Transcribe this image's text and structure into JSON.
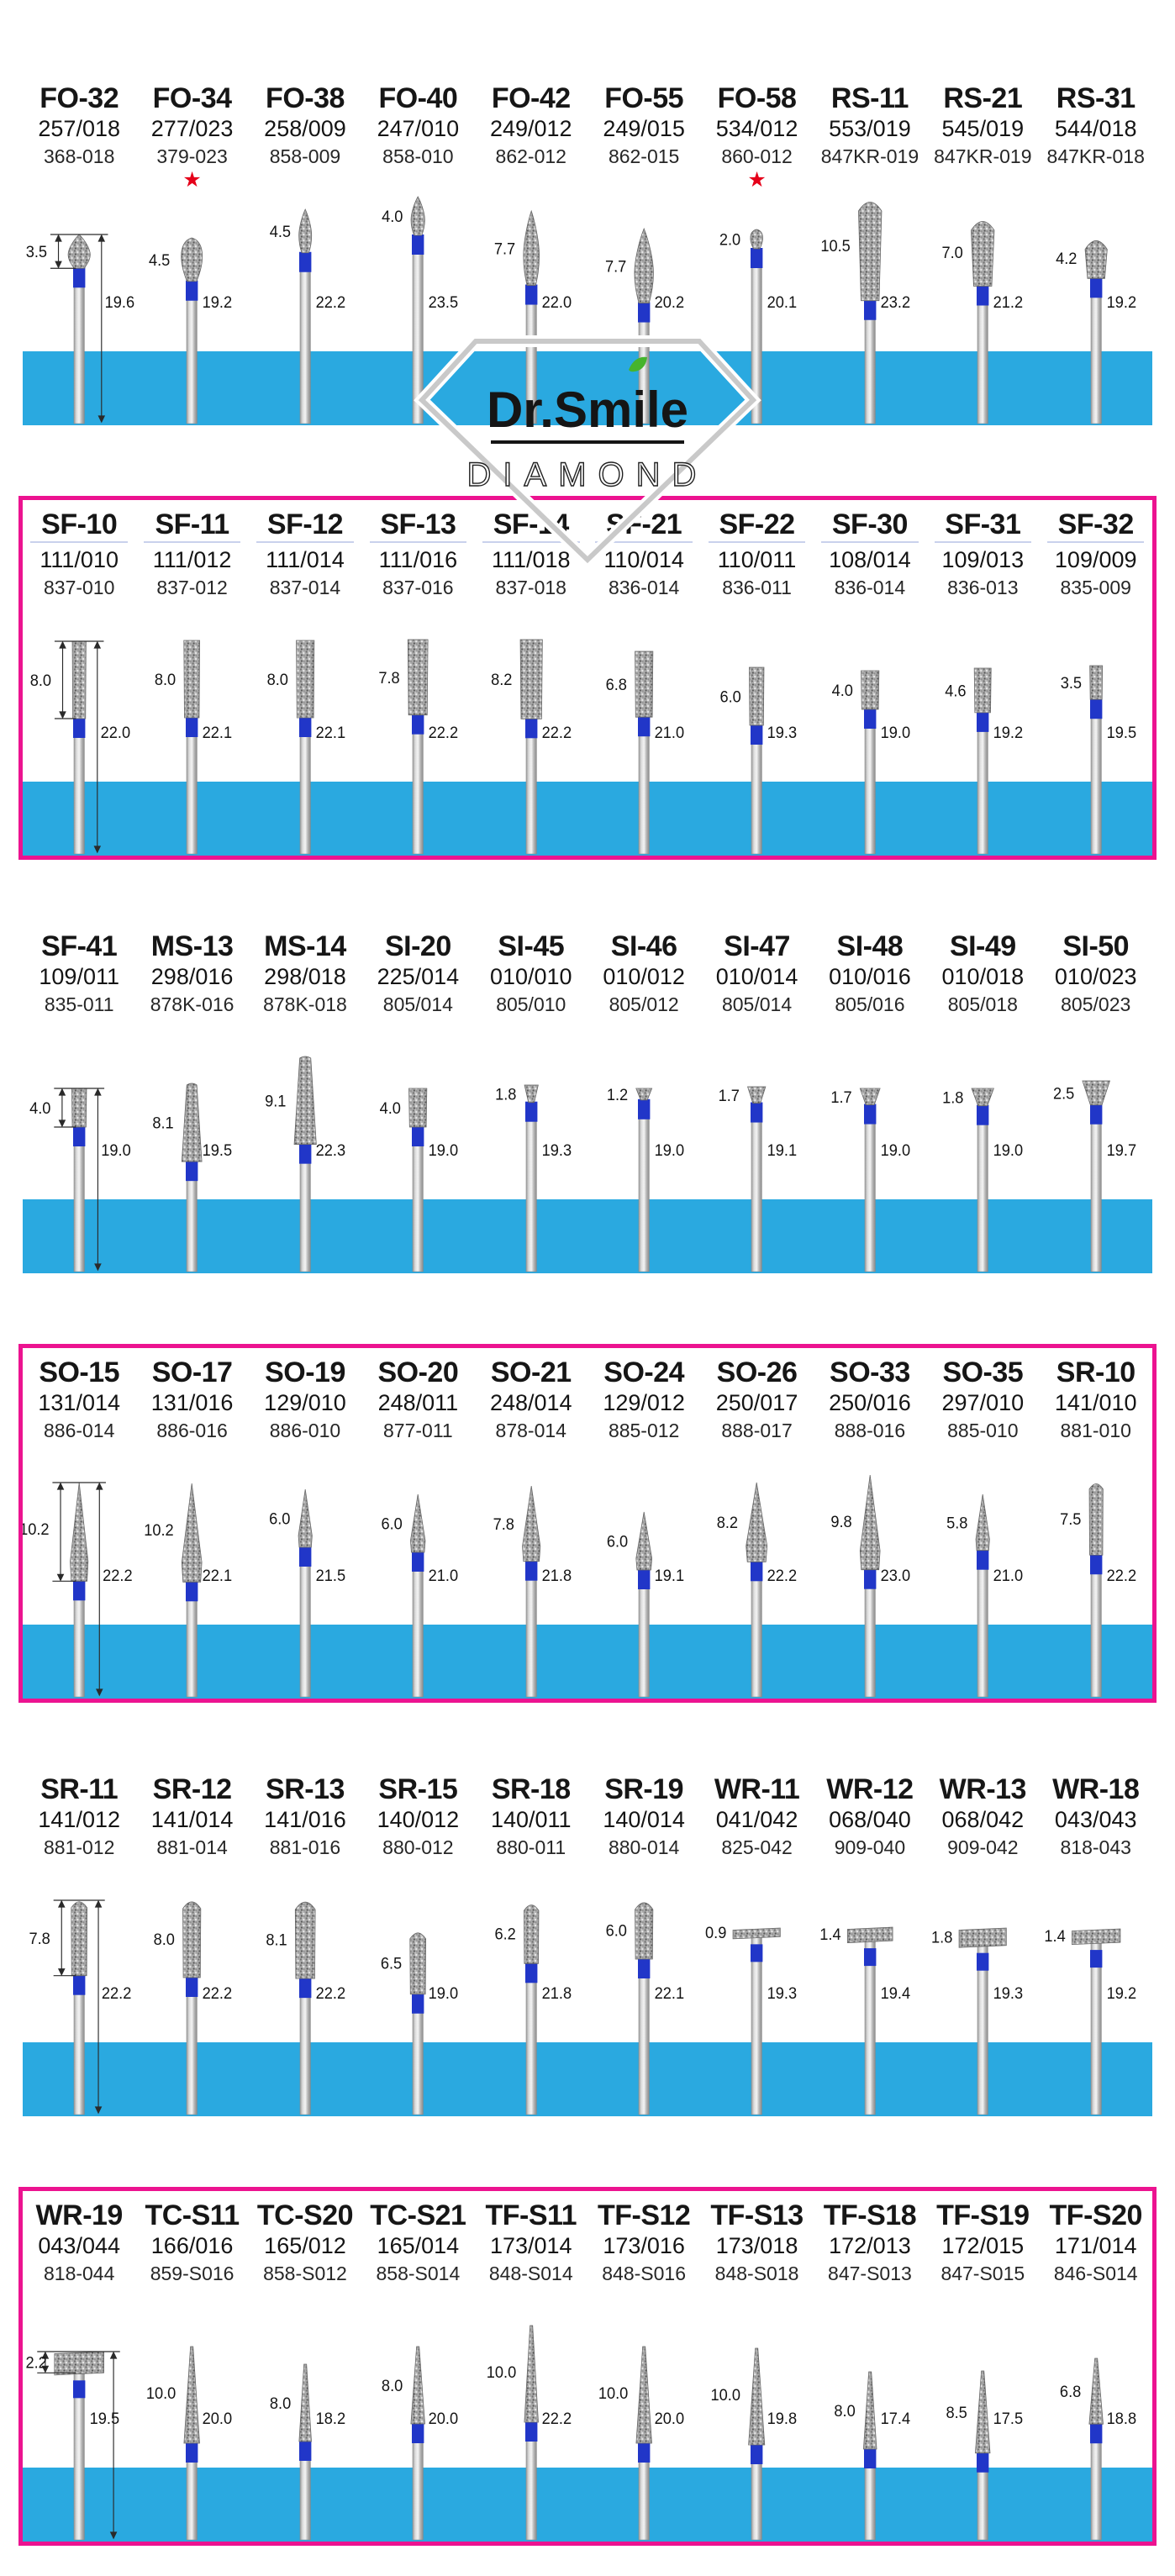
{
  "brand": {
    "name": "Dr.Smile",
    "subtitle": "DIAMOND"
  },
  "colors": {
    "band": "#2aa9e0",
    "box": "#ec1390",
    "neck": "#2136c8",
    "star": "#e50019",
    "diamond_outline": "#c9c9c9",
    "leaf": "#46b42d"
  },
  "rows": [
    {
      "boxed": false,
      "products": [
        {
          "code": "FO-32",
          "iso": "257/018",
          "ref": "368-018",
          "head": "3.5",
          "length": "19.6",
          "shape": "flame"
        },
        {
          "code": "FO-34",
          "iso": "277/023",
          "ref": "379-023",
          "head": "4.5",
          "length": "19.2",
          "shape": "egg",
          "star": true
        },
        {
          "code": "FO-38",
          "iso": "258/009",
          "ref": "858-009",
          "head": "4.5",
          "length": "22.2",
          "shape": "flame"
        },
        {
          "code": "FO-40",
          "iso": "247/010",
          "ref": "858-010",
          "head": "4.0",
          "length": "23.5",
          "shape": "flame"
        },
        {
          "code": "FO-42",
          "iso": "249/012",
          "ref": "862-012",
          "head": "7.7",
          "length": "22.0",
          "shape": "flame"
        },
        {
          "code": "FO-55",
          "iso": "249/015",
          "ref": "862-015",
          "head": "7.7",
          "length": "20.2",
          "shape": "flame"
        },
        {
          "code": "FO-58",
          "iso": "534/012",
          "ref": "860-012",
          "head": "2.0",
          "length": "20.1",
          "shape": "egg",
          "star": true
        },
        {
          "code": "RS-11",
          "iso": "553/019",
          "ref": "847KR-019",
          "head": "10.5",
          "length": "23.2",
          "shape": "round"
        },
        {
          "code": "RS-21",
          "iso": "545/019",
          "ref": "847KR-019",
          "head": "7.0",
          "length": "21.2",
          "shape": "round"
        },
        {
          "code": "RS-31",
          "iso": "544/018",
          "ref": "847KR-018",
          "head": "4.2",
          "length": "19.2",
          "shape": "round"
        }
      ]
    },
    {
      "boxed": true,
      "products": [
        {
          "code": "SF-10",
          "iso": "111/010",
          "ref": "837-010",
          "head": "8.0",
          "length": "22.0",
          "shape": "cyl"
        },
        {
          "code": "SF-11",
          "iso": "111/012",
          "ref": "837-012",
          "head": "8.0",
          "length": "22.1",
          "shape": "cyl"
        },
        {
          "code": "SF-12",
          "iso": "111/014",
          "ref": "837-014",
          "head": "8.0",
          "length": "22.1",
          "shape": "cyl"
        },
        {
          "code": "SF-13",
          "iso": "111/016",
          "ref": "837-016",
          "head": "7.8",
          "length": "22.2",
          "shape": "cyl"
        },
        {
          "code": "SF-14",
          "iso": "111/018",
          "ref": "837-018",
          "head": "8.2",
          "length": "22.2",
          "shape": "cyl"
        },
        {
          "code": "SF-21",
          "iso": "110/014",
          "ref": "836-014",
          "head": "6.8",
          "length": "21.0",
          "shape": "cyl"
        },
        {
          "code": "SF-22",
          "iso": "110/011",
          "ref": "836-011",
          "head": "6.0",
          "length": "19.3",
          "shape": "cyl"
        },
        {
          "code": "SF-30",
          "iso": "108/014",
          "ref": "836-014",
          "head": "4.0",
          "length": "19.0",
          "shape": "cyl"
        },
        {
          "code": "SF-31",
          "iso": "109/013",
          "ref": "836-013",
          "head": "4.6",
          "length": "19.2",
          "shape": "cyl"
        },
        {
          "code": "SF-32",
          "iso": "109/009",
          "ref": "835-009",
          "head": "3.5",
          "length": "19.5",
          "shape": "cyl"
        }
      ]
    },
    {
      "boxed": false,
      "products": [
        {
          "code": "SF-41",
          "iso": "109/011",
          "ref": "835-011",
          "head": "4.0",
          "length": "19.0",
          "shape": "cyl"
        },
        {
          "code": "MS-13",
          "iso": "298/016",
          "ref": "878K-016",
          "head": "8.1",
          "length": "19.5",
          "shape": "taper"
        },
        {
          "code": "MS-14",
          "iso": "298/018",
          "ref": "878K-018",
          "head": "9.1",
          "length": "22.3",
          "shape": "taper"
        },
        {
          "code": "SI-20",
          "iso": "225/014",
          "ref": "805/014",
          "head": "4.0",
          "length": "19.0",
          "shape": "cyl"
        },
        {
          "code": "SI-45",
          "iso": "010/010",
          "ref": "805/010",
          "head": "1.8",
          "length": "19.3",
          "shape": "invcone"
        },
        {
          "code": "SI-46",
          "iso": "010/012",
          "ref": "805/012",
          "head": "1.2",
          "length": "19.0",
          "shape": "invcone"
        },
        {
          "code": "SI-47",
          "iso": "010/014",
          "ref": "805/014",
          "head": "1.7",
          "length": "19.1",
          "shape": "invcone"
        },
        {
          "code": "SI-48",
          "iso": "010/016",
          "ref": "805/016",
          "head": "1.7",
          "length": "19.0",
          "shape": "invcone"
        },
        {
          "code": "SI-49",
          "iso": "010/018",
          "ref": "805/018",
          "head": "1.8",
          "length": "19.0",
          "shape": "invcone"
        },
        {
          "code": "SI-50",
          "iso": "010/023",
          "ref": "805/023",
          "head": "2.5",
          "length": "19.7",
          "shape": "invcone"
        }
      ]
    },
    {
      "boxed": true,
      "products": [
        {
          "code": "SO-15",
          "iso": "131/014",
          "ref": "886-014",
          "head": "10.2",
          "length": "22.2",
          "shape": "cone"
        },
        {
          "code": "SO-17",
          "iso": "131/016",
          "ref": "886-016",
          "head": "10.2",
          "length": "22.1",
          "shape": "cone"
        },
        {
          "code": "SO-19",
          "iso": "129/010",
          "ref": "886-010",
          "head": "6.0",
          "length": "21.5",
          "shape": "cone"
        },
        {
          "code": "SO-20",
          "iso": "248/011",
          "ref": "877-011",
          "head": "6.0",
          "length": "21.0",
          "shape": "cone"
        },
        {
          "code": "SO-21",
          "iso": "248/014",
          "ref": "878-014",
          "head": "7.8",
          "length": "21.8",
          "shape": "cone"
        },
        {
          "code": "SO-24",
          "iso": "129/012",
          "ref": "885-012",
          "head": "6.0",
          "length": "19.1",
          "shape": "cone"
        },
        {
          "code": "SO-26",
          "iso": "250/017",
          "ref": "888-017",
          "head": "8.2",
          "length": "22.2",
          "shape": "cone"
        },
        {
          "code": "SO-33",
          "iso": "250/016",
          "ref": "888-016",
          "head": "9.8",
          "length": "23.0",
          "shape": "cone"
        },
        {
          "code": "SO-35",
          "iso": "297/010",
          "ref": "885-010",
          "head": "5.8",
          "length": "21.0",
          "shape": "cone"
        },
        {
          "code": "SR-10",
          "iso": "141/010",
          "ref": "881-010",
          "head": "7.5",
          "length": "22.2",
          "shape": "roundcyl"
        }
      ]
    },
    {
      "boxed": false,
      "products": [
        {
          "code": "SR-11",
          "iso": "141/012",
          "ref": "881-012",
          "head": "7.8",
          "length": "22.2",
          "shape": "roundcyl"
        },
        {
          "code": "SR-12",
          "iso": "141/014",
          "ref": "881-014",
          "head": "8.0",
          "length": "22.2",
          "shape": "roundcyl"
        },
        {
          "code": "SR-13",
          "iso": "141/016",
          "ref": "881-016",
          "head": "8.1",
          "length": "22.2",
          "shape": "roundcyl"
        },
        {
          "code": "SR-15",
          "iso": "140/012",
          "ref": "880-012",
          "head": "6.5",
          "length": "19.0",
          "shape": "roundcyl"
        },
        {
          "code": "SR-18",
          "iso": "140/011",
          "ref": "880-011",
          "head": "6.2",
          "length": "21.8",
          "shape": "roundcyl"
        },
        {
          "code": "SR-19",
          "iso": "140/014",
          "ref": "880-014",
          "head": "6.0",
          "length": "22.1",
          "shape": "roundcyl"
        },
        {
          "code": "WR-11",
          "iso": "041/042",
          "ref": "825-042",
          "head": "0.9",
          "length": "19.3",
          "shape": "wheel"
        },
        {
          "code": "WR-12",
          "iso": "068/040",
          "ref": "909-040",
          "head": "1.4",
          "length": "19.4",
          "shape": "wheel"
        },
        {
          "code": "WR-13",
          "iso": "068/042",
          "ref": "909-042",
          "head": "1.8",
          "length": "19.3",
          "shape": "wheel"
        },
        {
          "code": "WR-18",
          "iso": "043/043",
          "ref": "818-043",
          "head": "1.4",
          "length": "19.2",
          "shape": "wheel"
        }
      ]
    },
    {
      "boxed": true,
      "products": [
        {
          "code": "WR-19",
          "iso": "043/044",
          "ref": "818-044",
          "head": "2.2",
          "length": "19.5",
          "shape": "wheel"
        },
        {
          "code": "TC-S11",
          "iso": "166/016",
          "ref": "859-S016",
          "head": "10.0",
          "length": "20.0",
          "shape": "needle"
        },
        {
          "code": "TC-S20",
          "iso": "165/012",
          "ref": "858-S012",
          "head": "8.0",
          "length": "18.2",
          "shape": "needle"
        },
        {
          "code": "TC-S21",
          "iso": "165/014",
          "ref": "858-S014",
          "head": "8.0",
          "length": "20.0",
          "shape": "needle"
        },
        {
          "code": "TF-S11",
          "iso": "173/014",
          "ref": "848-S014",
          "head": "10.0",
          "length": "22.2",
          "shape": "needle"
        },
        {
          "code": "TF-S12",
          "iso": "173/016",
          "ref": "848-S016",
          "head": "10.0",
          "length": "20.0",
          "shape": "needle"
        },
        {
          "code": "TF-S13",
          "iso": "173/018",
          "ref": "848-S018",
          "head": "10.0",
          "length": "19.8",
          "shape": "needle"
        },
        {
          "code": "TF-S18",
          "iso": "172/013",
          "ref": "847-S013",
          "head": "8.0",
          "length": "17.4",
          "shape": "needle"
        },
        {
          "code": "TF-S19",
          "iso": "172/015",
          "ref": "847-S015",
          "head": "8.5",
          "length": "17.5",
          "shape": "needle"
        },
        {
          "code": "TF-S20",
          "iso": "171/014",
          "ref": "846-S014",
          "head": "6.8",
          "length": "18.8",
          "shape": "needle"
        }
      ]
    }
  ]
}
